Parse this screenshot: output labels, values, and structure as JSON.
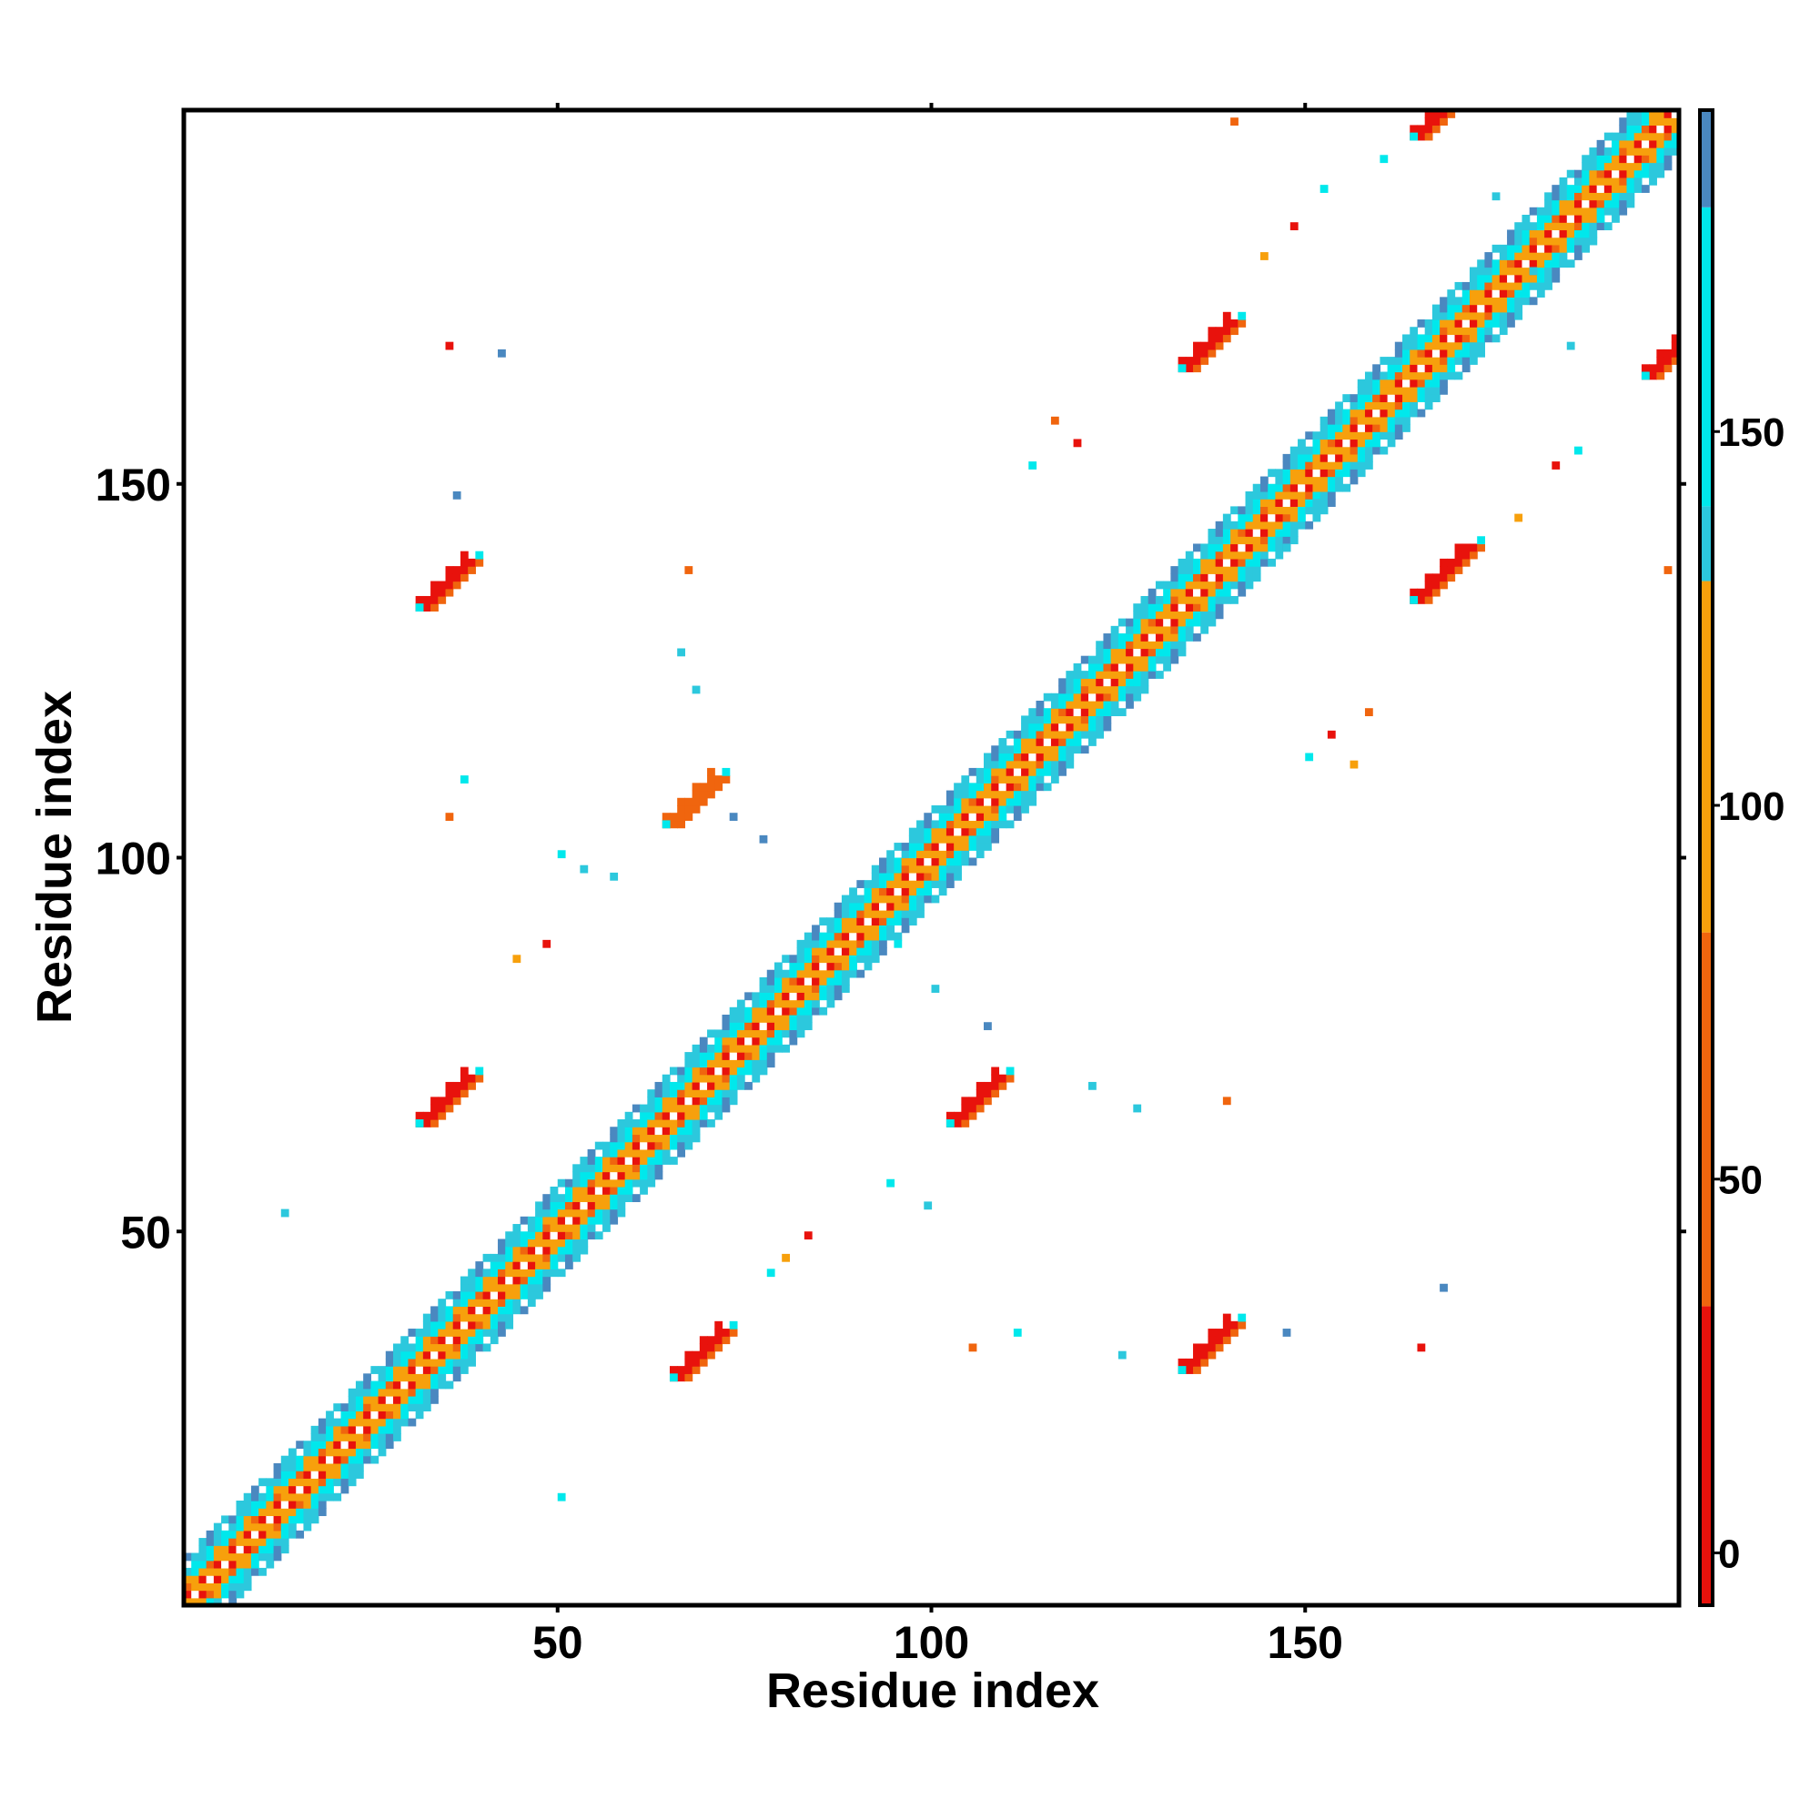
{
  "chart_data": {
    "type": "heatmap",
    "title": "",
    "xlabel": "Residue index",
    "ylabel": "Residue index",
    "xlim": [
      0,
      200
    ],
    "ylim": [
      0,
      200
    ],
    "x_ticks": [
      50,
      100,
      150
    ],
    "y_ticks": [
      50,
      100,
      150
    ],
    "colorbar": {
      "ticks": [
        0,
        50,
        100,
        150
      ],
      "range": [
        -7,
        193
      ],
      "bands": [
        {
          "from": -7,
          "to": 33,
          "color": "#e8120c"
        },
        {
          "from": 33,
          "to": 83,
          "color": "#f0650e"
        },
        {
          "from": 83,
          "to": 130,
          "color": "#f7a00c"
        },
        {
          "from": 130,
          "to": 140,
          "color": "#2cc8dd"
        },
        {
          "from": 140,
          "to": 180,
          "color": "#00e8ec"
        },
        {
          "from": 180,
          "to": 193,
          "color": "#4a88c0"
        }
      ]
    },
    "grid": false,
    "legend": "colorbar right",
    "diagonal_band": {
      "from": 0,
      "to": 200,
      "half_width": 6
    },
    "contact_patches": [
      {
        "x_range": [
          65,
          72
        ],
        "y_range": [
          30,
          37
        ],
        "color": "#e8120c"
      },
      {
        "x_range": [
          133,
          141
        ],
        "y_range": [
          31,
          38
        ],
        "color": "#e8120c"
      },
      {
        "x_range": [
          31,
          38
        ],
        "y_range": [
          64,
          71
        ],
        "color": "#e8120c"
      },
      {
        "x_range": [
          102,
          109
        ],
        "y_range": [
          64,
          71
        ],
        "color": "#e8120c"
      },
      {
        "x_range": [
          64,
          71
        ],
        "y_range": [
          104,
          111
        ],
        "color": "#f0650e"
      },
      {
        "x_range": [
          31,
          38
        ],
        "y_range": [
          133,
          141
        ],
        "color": "#e8120c"
      },
      {
        "x_range": [
          164,
          172
        ],
        "y_range": [
          134,
          142
        ],
        "color": "#e8120c"
      },
      {
        "x_range": [
          133,
          141
        ],
        "y_range": [
          165,
          172
        ],
        "color": "#e8120c"
      },
      {
        "x_range": [
          164,
          172
        ],
        "y_range": [
          196,
          201
        ],
        "color": "#e8120c"
      },
      {
        "x_range": [
          195,
          200
        ],
        "y_range": [
          164,
          170
        ],
        "color": "#e8120c"
      }
    ],
    "scattered_contacts": [
      {
        "x": 35,
        "y": 168,
        "color": "#e8120c"
      },
      {
        "x": 42,
        "y": 167,
        "color": "#4a88c0"
      },
      {
        "x": 36,
        "y": 148,
        "color": "#4a88c0"
      },
      {
        "x": 37,
        "y": 110,
        "color": "#00e8ec"
      },
      {
        "x": 35,
        "y": 105,
        "color": "#f0650e"
      },
      {
        "x": 13,
        "y": 52,
        "color": "#2cc8dd"
      },
      {
        "x": 50,
        "y": 14,
        "color": "#00e8ec"
      },
      {
        "x": 67,
        "y": 138,
        "color": "#f0650e"
      },
      {
        "x": 66,
        "y": 127,
        "color": "#2cc8dd"
      },
      {
        "x": 68,
        "y": 122,
        "color": "#2cc8dd"
      },
      {
        "x": 50,
        "y": 100,
        "color": "#00e8ec"
      },
      {
        "x": 53,
        "y": 98,
        "color": "#2cc8dd"
      },
      {
        "x": 57,
        "y": 97,
        "color": "#2cc8dd"
      },
      {
        "x": 48,
        "y": 88,
        "color": "#e8120c"
      },
      {
        "x": 44,
        "y": 86,
        "color": "#f7a00c"
      },
      {
        "x": 73,
        "y": 105,
        "color": "#4a88c0"
      },
      {
        "x": 77,
        "y": 102,
        "color": "#4a88c0"
      },
      {
        "x": 95,
        "y": 88,
        "color": "#00e8ec"
      },
      {
        "x": 100,
        "y": 82,
        "color": "#2cc8dd"
      },
      {
        "x": 107,
        "y": 77,
        "color": "#4a88c0"
      },
      {
        "x": 121,
        "y": 69,
        "color": "#2cc8dd"
      },
      {
        "x": 127,
        "y": 66,
        "color": "#2cc8dd"
      },
      {
        "x": 139,
        "y": 67,
        "color": "#f0650e"
      },
      {
        "x": 94,
        "y": 56,
        "color": "#00e8ec"
      },
      {
        "x": 99,
        "y": 53,
        "color": "#2cc8dd"
      },
      {
        "x": 83,
        "y": 49,
        "color": "#e8120c"
      },
      {
        "x": 80,
        "y": 46,
        "color": "#f7a00c"
      },
      {
        "x": 78,
        "y": 44,
        "color": "#00e8ec"
      },
      {
        "x": 105,
        "y": 34,
        "color": "#f0650e"
      },
      {
        "x": 111,
        "y": 36,
        "color": "#00e8ec"
      },
      {
        "x": 125,
        "y": 33,
        "color": "#2cc8dd"
      },
      {
        "x": 147,
        "y": 36,
        "color": "#4a88c0"
      },
      {
        "x": 168,
        "y": 42,
        "color": "#4a88c0"
      },
      {
        "x": 165,
        "y": 34,
        "color": "#e8120c"
      },
      {
        "x": 140,
        "y": 198,
        "color": "#f0650e"
      },
      {
        "x": 152,
        "y": 189,
        "color": "#00e8ec"
      },
      {
        "x": 148,
        "y": 184,
        "color": "#e8120c"
      },
      {
        "x": 144,
        "y": 180,
        "color": "#f7a00c"
      },
      {
        "x": 116,
        "y": 158,
        "color": "#f0650e"
      },
      {
        "x": 113,
        "y": 152,
        "color": "#00e8ec"
      },
      {
        "x": 119,
        "y": 155,
        "color": "#e8120c"
      },
      {
        "x": 151,
        "y": 147,
        "color": "#2cc8dd"
      },
      {
        "x": 147,
        "y": 141,
        "color": "#2cc8dd"
      },
      {
        "x": 183,
        "y": 152,
        "color": "#e8120c"
      },
      {
        "x": 186,
        "y": 154,
        "color": "#00e8ec"
      },
      {
        "x": 178,
        "y": 145,
        "color": "#f7a00c"
      },
      {
        "x": 158,
        "y": 119,
        "color": "#f0650e"
      },
      {
        "x": 153,
        "y": 116,
        "color": "#e8120c"
      },
      {
        "x": 150,
        "y": 113,
        "color": "#00e8ec"
      },
      {
        "x": 156,
        "y": 112,
        "color": "#f7a00c"
      },
      {
        "x": 198,
        "y": 138,
        "color": "#f0650e"
      },
      {
        "x": 160,
        "y": 193,
        "color": "#00e8ec"
      },
      {
        "x": 175,
        "y": 188,
        "color": "#2cc8dd"
      },
      {
        "x": 180,
        "y": 178,
        "color": "#2cc8dd"
      },
      {
        "x": 185,
        "y": 168,
        "color": "#2cc8dd"
      }
    ]
  }
}
